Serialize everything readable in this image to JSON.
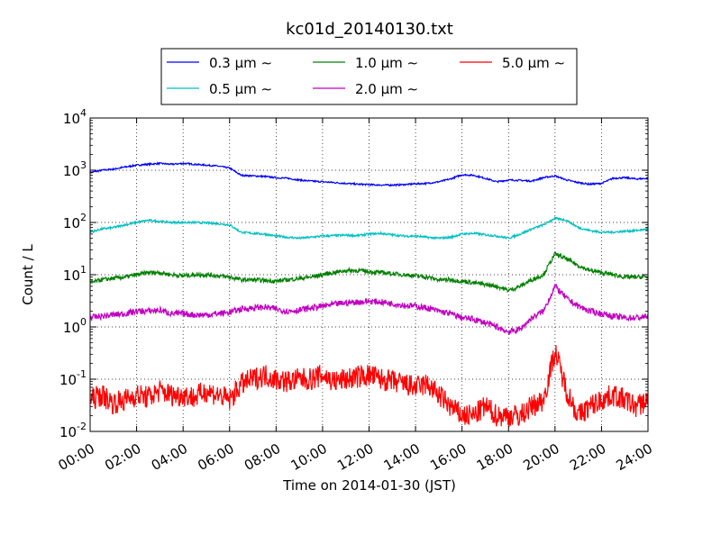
{
  "chart_data": {
    "type": "line",
    "title": "kc01d_20140130.txt",
    "xlabel": "Time on 2014-01-30 (JST)",
    "ylabel": "Count / L",
    "y_scale": "log",
    "ylim": [
      0.01,
      10000
    ],
    "xlim": [
      "2014-01-30T00:00",
      "2014-01-31T00:00"
    ],
    "x_ticks": [
      "00:00",
      "02:00",
      "04:00",
      "06:00",
      "08:00",
      "10:00",
      "12:00",
      "14:00",
      "16:00",
      "18:00",
      "20:00",
      "22:00",
      "24:00"
    ],
    "y_ticks": [
      {
        "base": "10",
        "exp": "-2"
      },
      {
        "base": "10",
        "exp": "-1"
      },
      {
        "base": "10",
        "exp": "0"
      },
      {
        "base": "10",
        "exp": "1"
      },
      {
        "base": "10",
        "exp": "2"
      },
      {
        "base": "10",
        "exp": "3"
      },
      {
        "base": "10",
        "exp": "4"
      }
    ],
    "grid": true,
    "legend_position": "top",
    "x": [
      "00:00",
      "00:30",
      "01:00",
      "01:30",
      "02:00",
      "02:30",
      "03:00",
      "03:30",
      "04:00",
      "04:30",
      "05:00",
      "05:30",
      "06:00",
      "06:30",
      "07:00",
      "07:30",
      "08:00",
      "08:30",
      "09:00",
      "09:30",
      "10:00",
      "10:30",
      "11:00",
      "11:30",
      "12:00",
      "12:30",
      "13:00",
      "13:30",
      "14:00",
      "14:30",
      "15:00",
      "15:30",
      "16:00",
      "16:30",
      "17:00",
      "17:30",
      "18:00",
      "18:30",
      "19:00",
      "19:30",
      "20:00",
      "20:30",
      "21:00",
      "21:30",
      "22:00",
      "22:30",
      "23:00",
      "23:30",
      "24:00"
    ],
    "series": [
      {
        "name": "0.3 μm ∼",
        "color": "#0000ff",
        "values": [
          900,
          1000,
          1050,
          1150,
          1250,
          1300,
          1350,
          1300,
          1350,
          1300,
          1250,
          1200,
          1100,
          800,
          780,
          760,
          720,
          700,
          650,
          620,
          600,
          580,
          560,
          540,
          530,
          520,
          520,
          530,
          550,
          560,
          600,
          680,
          820,
          800,
          700,
          600,
          650,
          640,
          620,
          720,
          780,
          650,
          580,
          540,
          560,
          700,
          720,
          680,
          700
        ]
      },
      {
        "name": "0.5 μm ∼",
        "color": "#00c0c0",
        "values": [
          65,
          75,
          80,
          90,
          100,
          110,
          105,
          100,
          100,
          100,
          98,
          95,
          90,
          65,
          62,
          60,
          55,
          52,
          50,
          52,
          55,
          56,
          57,
          56,
          60,
          62,
          58,
          55,
          55,
          52,
          50,
          52,
          60,
          62,
          58,
          55,
          50,
          60,
          75,
          90,
          120,
          110,
          80,
          70,
          65,
          65,
          68,
          70,
          75
        ]
      },
      {
        "name": "1.0 μm ∼",
        "color": "#008000",
        "values": [
          7,
          8,
          8.5,
          9,
          10,
          11,
          11,
          10,
          9.5,
          10,
          10,
          9.5,
          9,
          8,
          8,
          7.8,
          7.5,
          8,
          8.5,
          9,
          10,
          11,
          12,
          12,
          11.5,
          11,
          10.5,
          10,
          9.5,
          9,
          8,
          8,
          7.5,
          7,
          6.5,
          6,
          5,
          6,
          8,
          10,
          25,
          20,
          15,
          12,
          11,
          10,
          9,
          9,
          9
        ]
      },
      {
        "name": "2.0 μm ∼",
        "color": "#c000c0",
        "values": [
          1.5,
          1.6,
          1.7,
          1.8,
          2,
          2,
          2.1,
          1.8,
          1.8,
          1.7,
          1.7,
          1.8,
          1.9,
          2.2,
          2.3,
          2.4,
          2.2,
          2,
          2.1,
          2.3,
          2.5,
          2.7,
          2.9,
          3,
          3.1,
          3,
          2.8,
          2.6,
          2.5,
          2.3,
          2,
          1.8,
          1.5,
          1.4,
          1.2,
          1,
          0.8,
          0.9,
          1.5,
          2,
          6,
          3.5,
          2.5,
          2,
          1.8,
          1.6,
          1.5,
          1.5,
          1.6
        ]
      },
      {
        "name": "5.0 μm ∼",
        "color": "#ff0000",
        "values": [
          0.04,
          0.05,
          0.035,
          0.04,
          0.05,
          0.045,
          0.06,
          0.05,
          0.05,
          0.045,
          0.06,
          0.05,
          0.04,
          0.08,
          0.1,
          0.12,
          0.1,
          0.09,
          0.1,
          0.1,
          0.12,
          0.09,
          0.1,
          0.11,
          0.12,
          0.1,
          0.09,
          0.08,
          0.07,
          0.08,
          0.05,
          0.03,
          0.02,
          0.02,
          0.03,
          0.02,
          0.02,
          0.02,
          0.03,
          0.04,
          0.35,
          0.06,
          0.02,
          0.03,
          0.04,
          0.05,
          0.04,
          0.03,
          0.04
        ]
      }
    ]
  }
}
